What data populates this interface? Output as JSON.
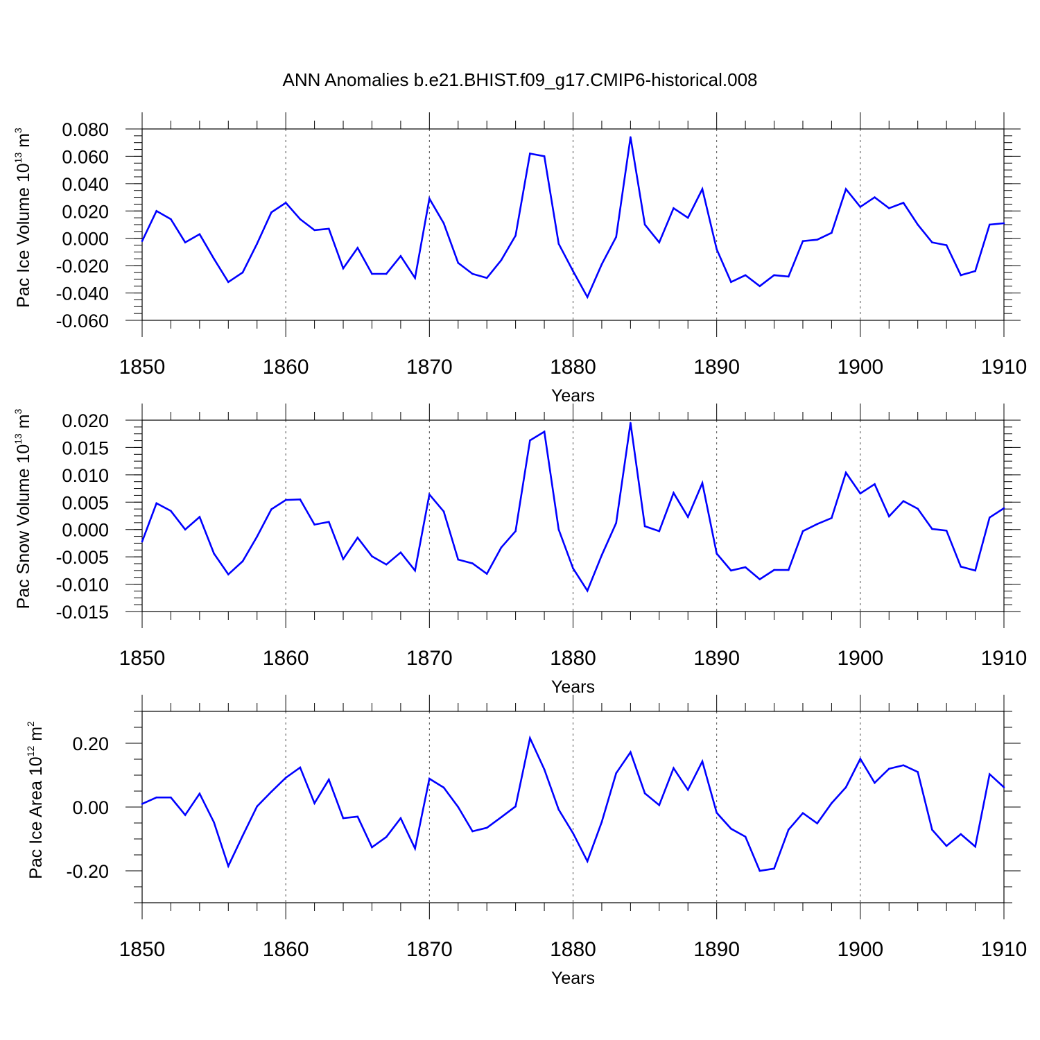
{
  "title": "ANN Anomalies b.e21.BHIST.f09_g17.CMIP6-historical.008",
  "colors": {
    "line": "#0000ff",
    "axis": "#000000",
    "grid": "#000000"
  },
  "chart_data": [
    {
      "type": "line",
      "xlabel": "Years",
      "ylabel": {
        "main": "Pac Ice Volume 10",
        "exp": "13",
        "unit": " m",
        "unit_exp": "3"
      },
      "xlim": [
        1850,
        1910
      ],
      "ylim": [
        -0.06,
        0.08
      ],
      "x_ticks": [
        "1850",
        "1860",
        "1870",
        "1880",
        "1890",
        "1900",
        "1910"
      ],
      "y_ticks": [
        {
          "v": 0.08,
          "t": "0.080"
        },
        {
          "v": 0.06,
          "t": "0.060"
        },
        {
          "v": 0.04,
          "t": "0.040"
        },
        {
          "v": 0.02,
          "t": "0.020"
        },
        {
          "v": 0.0,
          "t": "0.000"
        },
        {
          "v": -0.02,
          "t": "-0.020"
        },
        {
          "v": -0.04,
          "t": "-0.040"
        },
        {
          "v": -0.06,
          "t": "-0.060"
        }
      ],
      "y_minor_step": 0.005,
      "grid": "vertical dashed at decades",
      "x": [
        1850,
        1851,
        1852,
        1853,
        1854,
        1855,
        1856,
        1857,
        1858,
        1859,
        1860,
        1861,
        1862,
        1863,
        1864,
        1865,
        1866,
        1867,
        1868,
        1869,
        1870,
        1871,
        1872,
        1873,
        1874,
        1875,
        1876,
        1877,
        1878,
        1879,
        1880,
        1881,
        1882,
        1883,
        1884,
        1885,
        1886,
        1887,
        1888,
        1889,
        1890,
        1891,
        1892,
        1893,
        1894,
        1895,
        1896,
        1897,
        1898,
        1899,
        1900,
        1901,
        1902,
        1903,
        1904,
        1905,
        1906,
        1907,
        1908,
        1909,
        1910
      ],
      "values": [
        -0.002,
        0.02,
        0.014,
        -0.003,
        0.003,
        -0.015,
        -0.032,
        -0.025,
        -0.004,
        0.019,
        0.026,
        0.014,
        0.006,
        0.007,
        -0.022,
        -0.007,
        -0.026,
        -0.026,
        -0.013,
        -0.029,
        0.029,
        0.011,
        -0.018,
        -0.026,
        -0.029,
        -0.016,
        0.002,
        0.062,
        0.06,
        -0.004,
        -0.024,
        -0.043,
        -0.019,
        0.001,
        0.074,
        0.01,
        -0.003,
        0.022,
        0.015,
        0.036,
        -0.008,
        -0.032,
        -0.027,
        -0.035,
        -0.027,
        -0.028,
        -0.002,
        -0.001,
        0.004,
        0.036,
        0.023,
        0.03,
        0.022,
        0.026,
        0.01,
        -0.003,
        -0.005,
        -0.027,
        -0.024,
        0.01,
        0.011
      ]
    },
    {
      "type": "line",
      "xlabel": "Years",
      "ylabel": {
        "main": "Pac Snow Volume 10",
        "exp": "13",
        "unit": " m",
        "unit_exp": "3"
      },
      "xlim": [
        1850,
        1910
      ],
      "ylim": [
        -0.015,
        0.02
      ],
      "x_ticks": [
        "1850",
        "1860",
        "1870",
        "1880",
        "1890",
        "1900",
        "1910"
      ],
      "y_ticks": [
        {
          "v": 0.02,
          "t": "0.020"
        },
        {
          "v": 0.015,
          "t": "0.015"
        },
        {
          "v": 0.01,
          "t": "0.010"
        },
        {
          "v": 0.005,
          "t": "0.005"
        },
        {
          "v": 0.0,
          "t": "0.000"
        },
        {
          "v": -0.005,
          "t": "-0.005"
        },
        {
          "v": -0.01,
          "t": "-0.010"
        },
        {
          "v": -0.015,
          "t": "-0.015"
        }
      ],
      "y_minor_step": 0.00125,
      "grid": "vertical dashed at decades",
      "x": [
        1850,
        1851,
        1852,
        1853,
        1854,
        1855,
        1856,
        1857,
        1858,
        1859,
        1860,
        1861,
        1862,
        1863,
        1864,
        1865,
        1866,
        1867,
        1868,
        1869,
        1870,
        1871,
        1872,
        1873,
        1874,
        1875,
        1876,
        1877,
        1878,
        1879,
        1880,
        1881,
        1882,
        1883,
        1884,
        1885,
        1886,
        1887,
        1888,
        1889,
        1890,
        1891,
        1892,
        1893,
        1894,
        1895,
        1896,
        1897,
        1898,
        1899,
        1900,
        1901,
        1902,
        1903,
        1904,
        1905,
        1906,
        1907,
        1908,
        1909,
        1910
      ],
      "values": [
        -0.0022,
        0.0048,
        0.0034,
        0.0,
        0.0023,
        -0.0044,
        -0.0082,
        -0.0058,
        -0.0013,
        0.0037,
        0.0054,
        0.0055,
        0.0009,
        0.0014,
        -0.0054,
        -0.0015,
        -0.0049,
        -0.0064,
        -0.0042,
        -0.0075,
        0.0064,
        0.0033,
        -0.0055,
        -0.0062,
        -0.0081,
        -0.0033,
        -0.0003,
        0.0163,
        0.0179,
        0.0,
        -0.0071,
        -0.0112,
        -0.0047,
        0.0012,
        0.0195,
        0.0006,
        -0.0003,
        0.0067,
        0.0023,
        0.0085,
        -0.0044,
        -0.0075,
        -0.0069,
        -0.0091,
        -0.0074,
        -0.0074,
        -0.0003,
        0.001,
        0.0021,
        0.0104,
        0.0066,
        0.0083,
        0.0024,
        0.0052,
        0.0038,
        0.0001,
        -0.0002,
        -0.0068,
        -0.0075,
        0.0022,
        0.0039
      ]
    },
    {
      "type": "line",
      "xlabel": "Years",
      "ylabel": {
        "main": "Pac Ice Area 10",
        "exp": "12",
        "unit": " m",
        "unit_exp": "2"
      },
      "xlim": [
        1850,
        1910
      ],
      "ylim": [
        -0.3,
        0.3
      ],
      "x_ticks": [
        "1850",
        "1860",
        "1870",
        "1880",
        "1890",
        "1900",
        "1910"
      ],
      "y_ticks": [
        {
          "v": 0.2,
          "t": "0.20"
        },
        {
          "v": 0.0,
          "t": "0.00"
        },
        {
          "v": -0.2,
          "t": "-0.20"
        }
      ],
      "y_minor_step": 0.05,
      "grid": "vertical dashed at decades",
      "x": [
        1850,
        1851,
        1852,
        1853,
        1854,
        1855,
        1856,
        1857,
        1858,
        1859,
        1860,
        1861,
        1862,
        1863,
        1864,
        1865,
        1866,
        1867,
        1868,
        1869,
        1870,
        1871,
        1872,
        1873,
        1874,
        1875,
        1876,
        1877,
        1878,
        1879,
        1880,
        1881,
        1882,
        1883,
        1884,
        1885,
        1886,
        1887,
        1888,
        1889,
        1890,
        1891,
        1892,
        1893,
        1894,
        1895,
        1896,
        1897,
        1898,
        1899,
        1900,
        1901,
        1902,
        1903,
        1904,
        1905,
        1906,
        1907,
        1908,
        1909,
        1910
      ],
      "values": [
        0.01,
        0.03,
        0.03,
        -0.025,
        0.042,
        -0.048,
        -0.185,
        -0.09,
        0.002,
        0.048,
        0.092,
        0.124,
        0.012,
        0.086,
        -0.035,
        -0.03,
        -0.126,
        -0.094,
        -0.035,
        -0.13,
        0.089,
        0.061,
        0.0,
        -0.076,
        -0.065,
        -0.032,
        0.002,
        0.216,
        0.118,
        -0.008,
        -0.082,
        -0.17,
        -0.047,
        0.106,
        0.172,
        0.043,
        0.006,
        0.122,
        0.054,
        0.143,
        -0.018,
        -0.068,
        -0.093,
        -0.2,
        -0.193,
        -0.071,
        -0.019,
        -0.051,
        0.012,
        0.062,
        0.151,
        0.076,
        0.12,
        0.131,
        0.11,
        -0.071,
        -0.122,
        -0.085,
        -0.124,
        0.103,
        0.062
      ]
    }
  ]
}
